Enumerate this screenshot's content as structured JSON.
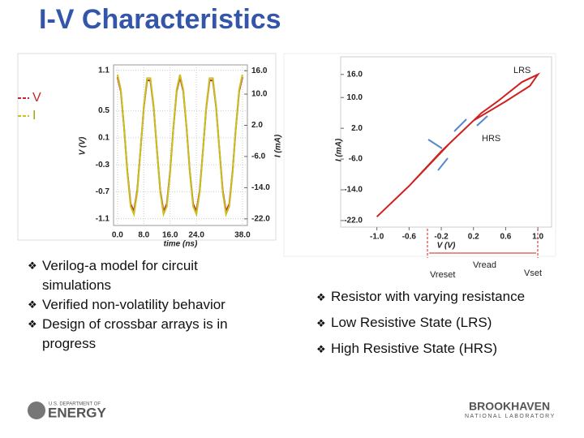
{
  "title": "I-V Characteristics",
  "bullets_left": [
    "Verilog-a model for circuit simulations",
    "Verified non-volatility behavior",
    "Design of crossbar arrays is in progress"
  ],
  "bullets_right": [
    "Resistor with varying resistance",
    "Low Resistive State (LRS)",
    "High Resistive State (HRS)"
  ],
  "footer": {
    "doe_small": "U.S. DEPARTMENT OF",
    "doe": "ENERGY",
    "bnl": "BROOKHAVEN",
    "bnl_sub": "NATIONAL LABORATORY"
  },
  "chart_data": [
    {
      "type": "line",
      "xlabel": "time (ns)",
      "ylabel": "V (V)",
      "y2label": "I (mA)",
      "x": [
        0,
        1,
        2,
        3,
        4,
        5,
        6,
        7,
        8,
        9,
        10,
        11,
        12,
        13,
        14,
        15,
        16,
        17,
        18,
        19,
        20,
        21,
        22,
        23,
        24,
        25,
        26,
        27,
        28,
        29,
        30,
        31,
        32,
        33,
        34,
        35,
        36,
        37,
        38
      ],
      "series": [
        {
          "name": "V",
          "color": "#c0282a",
          "values": [
            1.0,
            0.79,
            0.25,
            -0.4,
            -0.88,
            -0.99,
            -0.68,
            -0.08,
            0.55,
            0.95,
            0.95,
            0.55,
            -0.08,
            -0.68,
            -0.99,
            -0.88,
            -0.4,
            0.25,
            0.79,
            1.0,
            0.79,
            0.25,
            -0.4,
            -0.88,
            -0.99,
            -0.68,
            -0.08,
            0.55,
            0.95,
            0.95,
            0.55,
            -0.08,
            -0.68,
            -0.99,
            -0.88,
            -0.4,
            0.25,
            0.79,
            1.0
          ]
        },
        {
          "name": "I",
          "color": "#c8c020",
          "axis": "y2",
          "values": [
            15,
            11.2,
            1.5,
            -10.2,
            -18.8,
            -20.8,
            -15.2,
            -4.4,
            6.9,
            14.1,
            14.1,
            6.9,
            -4.4,
            -15.2,
            -20.8,
            -18.8,
            -10.2,
            1.5,
            11.2,
            15,
            11.2,
            1.5,
            -10.2,
            -18.8,
            -20.8,
            -15.2,
            -4.4,
            6.9,
            14.1,
            14.1,
            6.9,
            -4.4,
            -15.2,
            -20.8,
            -18.8,
            -10.2,
            1.5,
            11.2,
            15
          ]
        }
      ],
      "xlim": [
        -1.2,
        39.5
      ],
      "xticks": [
        {
          "value": 0,
          "label": "0.0"
        },
        {
          "value": 8,
          "label": "8.0"
        },
        {
          "value": 16,
          "label": "16.0"
        },
        {
          "value": 24,
          "label": "24.0"
        },
        {
          "value": 38,
          "label": "38.0"
        }
      ],
      "ylim": [
        -1.2,
        1.18
      ],
      "yticks": [
        1.1,
        0.5,
        0.1,
        -0.3,
        -0.7,
        -1.1
      ],
      "y2lim": [
        -23.7,
        17.5
      ],
      "y2ticks": [
        {
          "value": 16,
          "label": "16.0"
        },
        {
          "value": 10,
          "label": "10.0"
        },
        {
          "value": 2,
          "label": "2.0"
        },
        {
          "value": -6,
          "label": "-6.0"
        },
        {
          "value": -14,
          "label": "-14.0"
        },
        {
          "value": -22,
          "label": "-22.0"
        }
      ],
      "grid": true
    },
    {
      "type": "line",
      "xlabel": "V (V)",
      "ylabel": "I (mA)",
      "x": [
        -1.0,
        -0.6,
        -0.2,
        0.0,
        0.2,
        0.6,
        0.9,
        1.0,
        0.8,
        0.5,
        0.3,
        0.1,
        -0.1,
        -0.6,
        -1.0
      ],
      "series": [
        {
          "name": "I",
          "color": "#d02020",
          "values": [
            -21,
            -13,
            -4,
            0,
            4,
            9,
            13,
            16,
            14,
            9,
            6,
            2,
            -2,
            -13,
            -21
          ]
        }
      ],
      "xlim": [
        -1.45,
        1.17
      ],
      "xticks": [
        {
          "value": -1,
          "label": "-1.0"
        },
        -0.6,
        -0.2,
        0.2,
        0.6,
        {
          "value": 1,
          "label": "1.0"
        }
      ],
      "ylim": [
        -23.7,
        20.6
      ],
      "yticks": [
        {
          "value": 16,
          "label": "16.0"
        },
        {
          "value": 10,
          "label": "10.0"
        },
        {
          "value": 2,
          "label": "2.0"
        },
        {
          "value": -6,
          "label": "-6.0"
        },
        {
          "value": -14,
          "label": "-14.0"
        },
        {
          "value": -22,
          "label": "-22.0"
        }
      ],
      "grid": false,
      "annotations": [
        "LRS",
        "HRS",
        "Vreset",
        "Vread",
        "Vset"
      ]
    }
  ]
}
